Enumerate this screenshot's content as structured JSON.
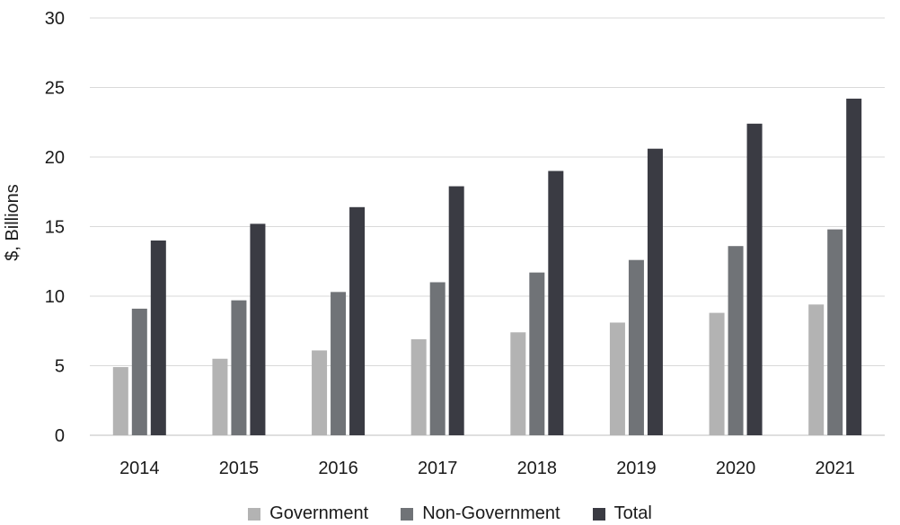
{
  "chart_data": {
    "type": "bar",
    "title": "",
    "xlabel": "",
    "ylabel": "$, Billions",
    "ylim": [
      0,
      30
    ],
    "yticks": [
      0,
      5,
      10,
      15,
      20,
      25,
      30
    ],
    "grid": true,
    "legend_position": "bottom",
    "categories": [
      "2014",
      "2015",
      "2016",
      "2017",
      "2018",
      "2019",
      "2020",
      "2021"
    ],
    "series": [
      {
        "name": "Government",
        "color": "#b3b3b3",
        "values": [
          4.9,
          5.5,
          6.1,
          6.9,
          7.4,
          8.1,
          8.8,
          9.4
        ]
      },
      {
        "name": "Non-Government",
        "color": "#707377",
        "values": [
          9.1,
          9.7,
          10.3,
          11.0,
          11.7,
          12.6,
          13.6,
          14.8
        ]
      },
      {
        "name": "Total",
        "color": "#3a3b43",
        "values": [
          14.0,
          15.2,
          16.4,
          17.9,
          19.0,
          20.6,
          22.4,
          24.2
        ]
      }
    ]
  }
}
